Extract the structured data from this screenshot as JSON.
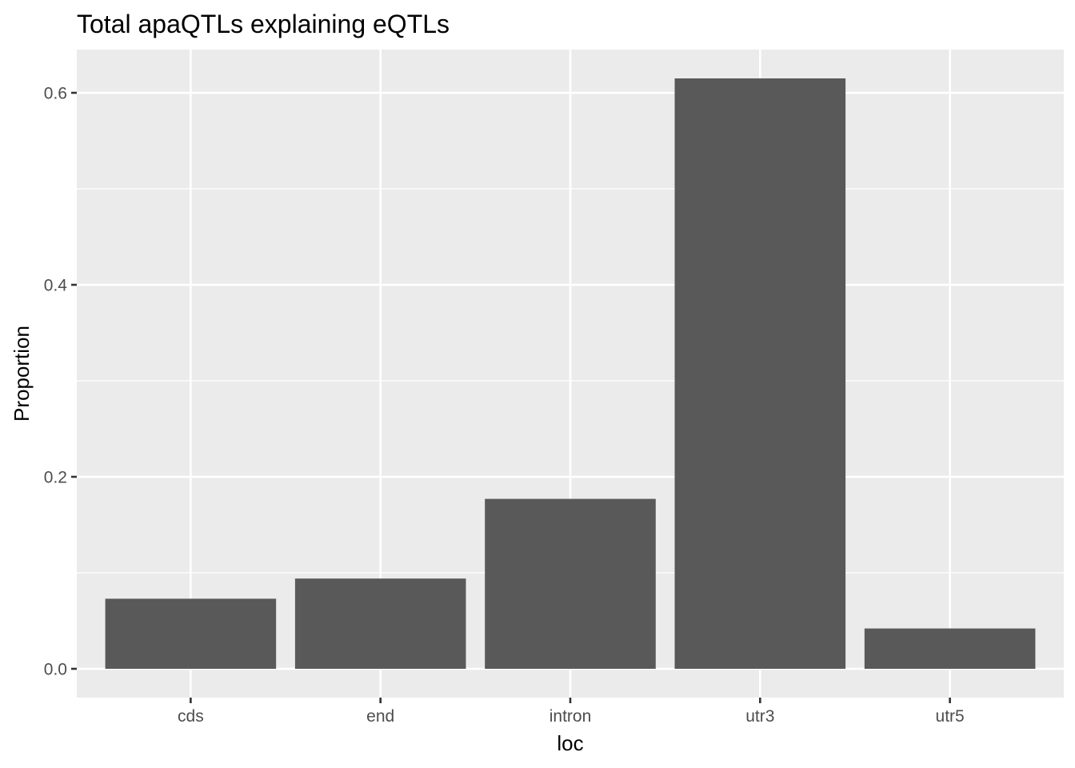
{
  "chart_data": {
    "type": "bar",
    "title": "Total apaQTLs explaining eQTLs",
    "xlabel": "loc",
    "ylabel": "Proportion",
    "categories": [
      "cds",
      "end",
      "intron",
      "utr3",
      "utr5"
    ],
    "values": [
      0.073,
      0.094,
      0.177,
      0.615,
      0.042
    ],
    "ylim": [
      -0.03,
      0.645
    ],
    "yticks": [
      0.0,
      0.2,
      0.4,
      0.6
    ],
    "ytick_labels": [
      "0.0",
      "0.2",
      "0.4",
      "0.6"
    ],
    "grid": true,
    "legend": "none",
    "colors": {
      "bar": "#595959",
      "panel": "#ebebeb",
      "grid": "#ffffff"
    }
  }
}
